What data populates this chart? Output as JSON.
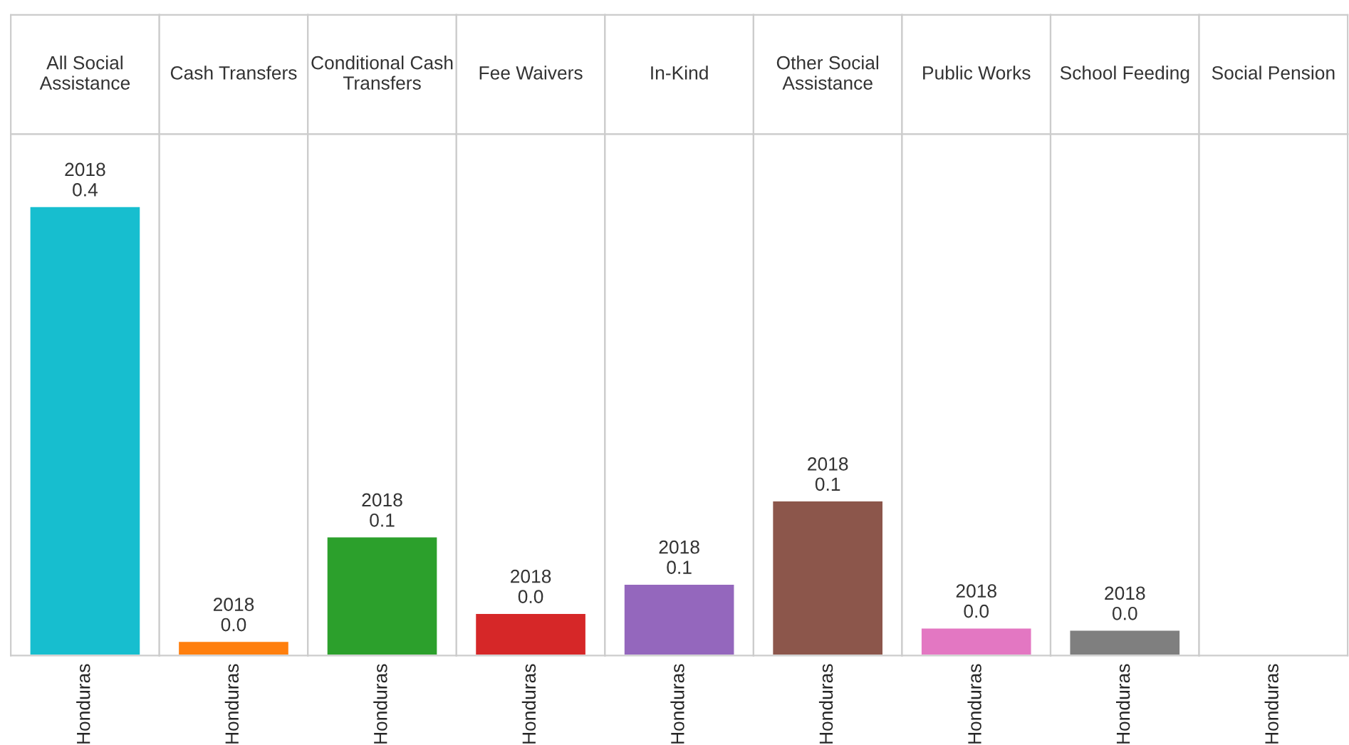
{
  "chart_data": [
    {
      "type": "bar",
      "title": "All Social\nAssistance",
      "categories": [
        "Honduras"
      ],
      "values": [
        0.4
      ],
      "colors": [
        "#17becf"
      ],
      "value_labels": [
        "2018\n0.4"
      ],
      "tick_labels": "x"
    },
    {
      "type": "bar",
      "title": "Cash Transfers",
      "categories": [
        "Honduras"
      ],
      "values": [
        0.013
      ],
      "colors": [
        "#ff7f0e"
      ],
      "value_labels": [
        "2018\n0.0"
      ],
      "tick_labels": "x"
    },
    {
      "type": "bar",
      "title": "Conditional Cash\nTransfers",
      "categories": [
        "Honduras"
      ],
      "values": [
        0.106
      ],
      "colors": [
        "#2ca02c"
      ],
      "value_labels": [
        "2018\n0.1"
      ],
      "tick_labels": "x"
    },
    {
      "type": "bar",
      "title": "Fee Waivers",
      "categories": [
        "Honduras"
      ],
      "values": [
        0.038
      ],
      "colors": [
        "#d62728"
      ],
      "value_labels": [
        "2018\n0.0"
      ],
      "tick_labels": "x"
    },
    {
      "type": "bar",
      "title": "In-Kind",
      "categories": [
        "Honduras"
      ],
      "values": [
        0.064
      ],
      "colors": [
        "#9467bd"
      ],
      "value_labels": [
        "2018\n0.1"
      ],
      "tick_labels": "x"
    },
    {
      "type": "bar",
      "title": "Other Social\nAssistance",
      "categories": [
        "Honduras"
      ],
      "values": [
        0.138
      ],
      "colors": [
        "#8c564b"
      ],
      "value_labels": [
        "2018\n0.1"
      ],
      "tick_labels": "x"
    },
    {
      "type": "bar",
      "title": "Public Works",
      "categories": [
        "Honduras"
      ],
      "values": [
        0.025
      ],
      "colors": [
        "#e377c2"
      ],
      "value_labels": [
        "2018\n0.0"
      ],
      "tick_labels": "x"
    },
    {
      "type": "bar",
      "title": "School Feeding",
      "categories": [
        "Honduras"
      ],
      "values": [
        0.023
      ],
      "colors": [
        "#7f7f7f"
      ],
      "value_labels": [
        "2018\n0.0"
      ],
      "tick_labels": "x"
    },
    {
      "type": "other",
      "title": "Social Pension",
      "categories": [
        "Honduras"
      ],
      "values": [
        null
      ],
      "value_labels": [
        null
      ]
    }
  ]
}
